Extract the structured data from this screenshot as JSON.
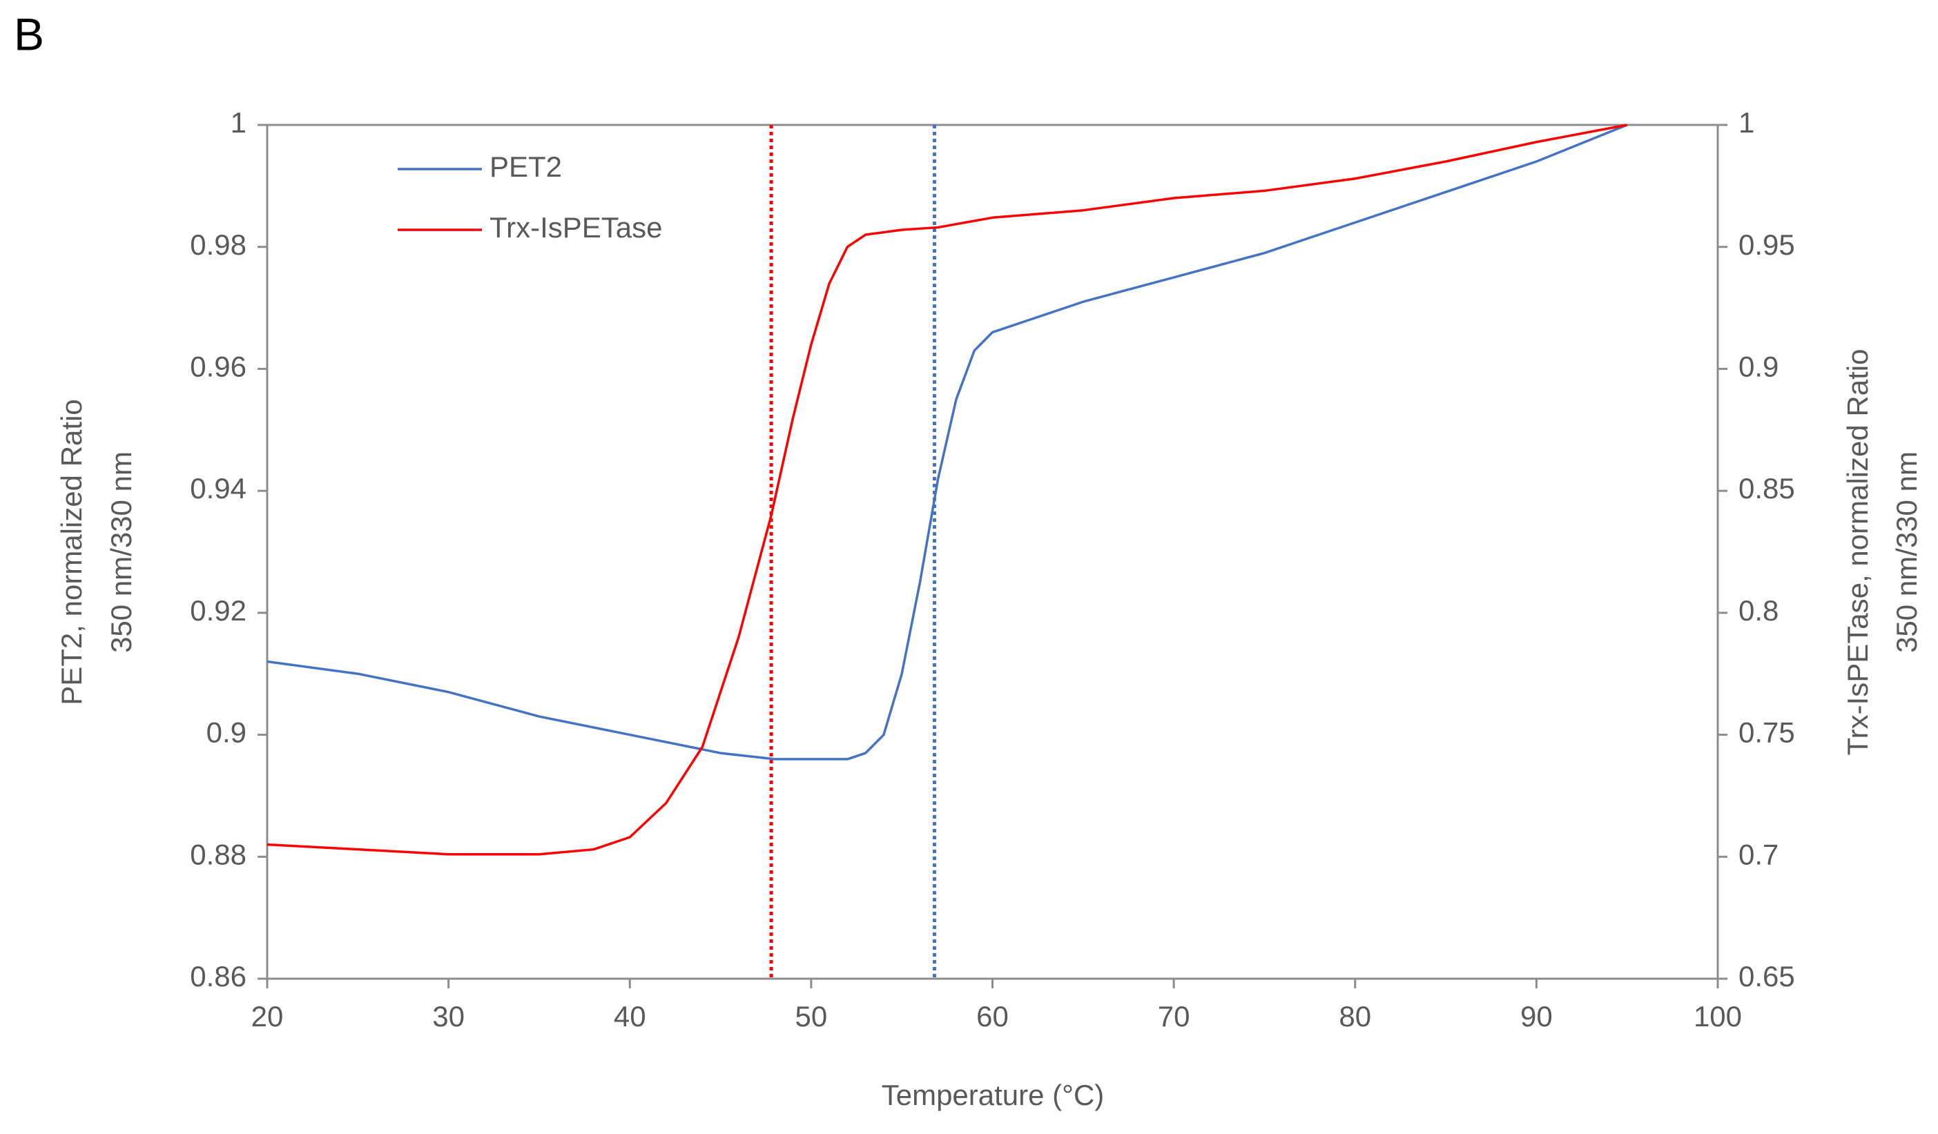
{
  "panel_label": "B",
  "chart_data": {
    "type": "line",
    "xlabel": "Temperature (°C)",
    "ylabel": [
      "PET2, normalized Ratio",
      "350 nm/330 nm"
    ],
    "y2label": [
      "Trx-IsPETase, normalized Ratio",
      "350 nm/330 nm"
    ],
    "xlim": [
      20,
      100
    ],
    "xticks": [
      20,
      30,
      40,
      50,
      60,
      70,
      80,
      90,
      100
    ],
    "ylim": [
      0.86,
      1
    ],
    "yticks": [
      0.86,
      0.88,
      0.9,
      0.92,
      0.94,
      0.96,
      0.98,
      1
    ],
    "y2lim": [
      0.65,
      1
    ],
    "y2ticks": [
      0.65,
      0.7,
      0.75,
      0.8,
      0.85,
      0.9,
      0.95,
      1
    ],
    "grid": false,
    "legend": "upper-left",
    "vlines": [
      {
        "x": 47.8,
        "color": "#ff0000"
      },
      {
        "x": 56.8,
        "color": "#4472c4"
      }
    ],
    "series": [
      {
        "name": "PET2",
        "color": "#4472c4",
        "x": [
          20,
          25,
          30,
          35,
          40,
          45,
          48,
          50,
          52,
          53,
          54,
          55,
          56,
          57,
          58,
          59,
          60,
          62,
          65,
          70,
          75,
          80,
          85,
          90,
          95
        ],
        "values": [
          0.912,
          0.91,
          0.907,
          0.903,
          0.9,
          0.897,
          0.896,
          0.896,
          0.896,
          0.897,
          0.9,
          0.91,
          0.925,
          0.942,
          0.955,
          0.963,
          0.966,
          0.968,
          0.971,
          0.975,
          0.979,
          0.984,
          0.989,
          0.994,
          1.0
        ]
      },
      {
        "name": "Trx-IsPETase",
        "color": "#ff0000",
        "axis": "y2",
        "x": [
          20,
          25,
          30,
          35,
          38,
          40,
          42,
          44,
          46,
          47.8,
          49,
          50,
          51,
          52,
          53,
          55,
          57,
          60,
          65,
          70,
          75,
          80,
          85,
          90,
          95
        ],
        "values": [
          0.705,
          0.703,
          0.701,
          0.701,
          0.703,
          0.708,
          0.722,
          0.745,
          0.79,
          0.84,
          0.88,
          0.91,
          0.935,
          0.95,
          0.955,
          0.957,
          0.958,
          0.962,
          0.965,
          0.97,
          0.973,
          0.978,
          0.985,
          0.993,
          1.0
        ]
      }
    ]
  }
}
